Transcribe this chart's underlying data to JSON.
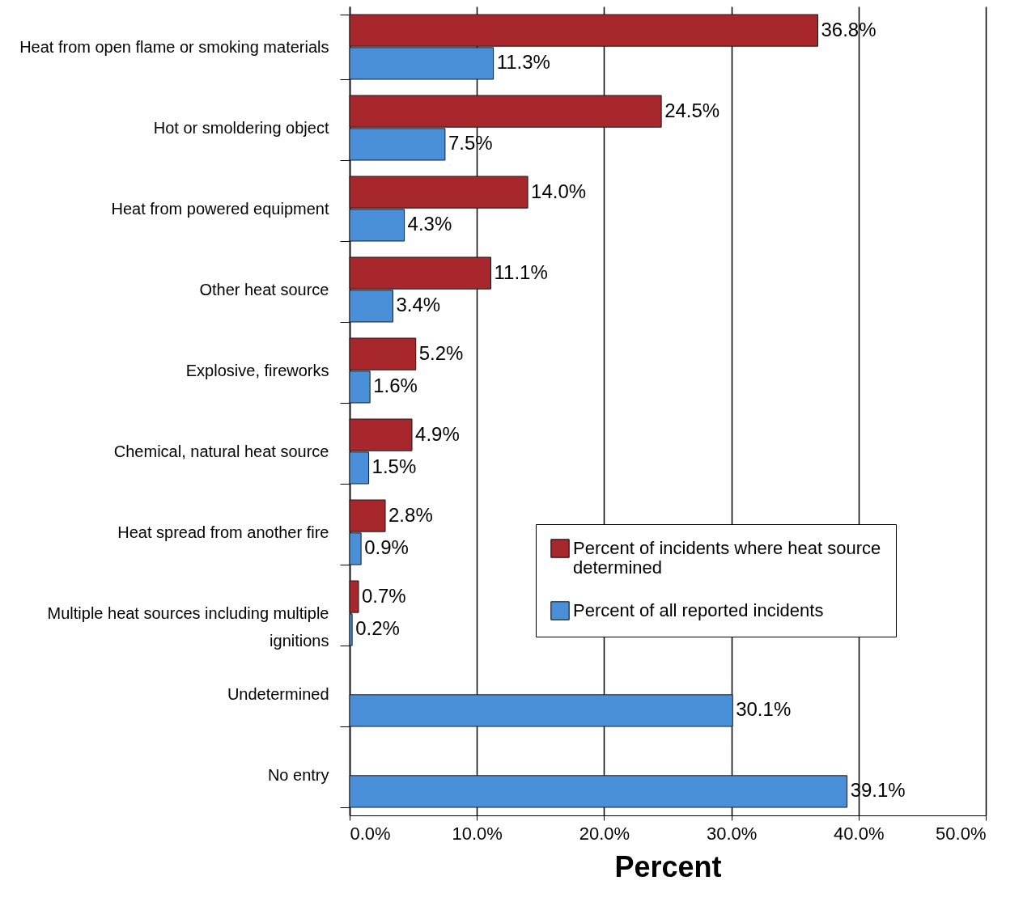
{
  "chart_data": {
    "type": "bar",
    "orientation": "horizontal",
    "xlabel": "Percent",
    "categories": [
      "Heat from open flame or smoking materials",
      "Hot or smoldering object",
      "Heat from powered equipment",
      "Other heat source",
      "Explosive, fireworks",
      "Chemical, natural heat source",
      "Heat spread from another fire",
      "Multiple heat sources including multiple ignitions",
      "Undetermined",
      "No entry"
    ],
    "series": [
      {
        "name": "Percent of incidents where heat source determined",
        "color": "#a8272d",
        "values": [
          36.8,
          24.5,
          14.0,
          11.1,
          5.2,
          4.9,
          2.8,
          0.7,
          null,
          null
        ],
        "value_labels": [
          "36.8%",
          "24.5%",
          "14.0%",
          "11.1%",
          "5.2%",
          "4.9%",
          "2.8%",
          "0.7%",
          null,
          null
        ]
      },
      {
        "name": "Percent of all reported incidents",
        "color": "#4a90d9",
        "values": [
          11.3,
          7.5,
          4.3,
          3.4,
          1.6,
          1.5,
          0.9,
          0.2,
          30.1,
          39.1
        ],
        "value_labels": [
          "11.3%",
          "7.5%",
          "4.3%",
          "3.4%",
          "1.6%",
          "1.5%",
          "0.9%",
          "0.2%",
          "30.1%",
          "39.1%"
        ]
      }
    ],
    "xlim": [
      0,
      50
    ],
    "xticks": [
      {
        "value": 0,
        "label": "0.0%"
      },
      {
        "value": 10,
        "label": "10.0%"
      },
      {
        "value": 20,
        "label": "20.0%"
      },
      {
        "value": 30,
        "label": "30.0%"
      },
      {
        "value": 40,
        "label": "40.0%"
      },
      {
        "value": 50,
        "label": "50.0%"
      }
    ],
    "grid": "x",
    "legend": "bottom right"
  }
}
